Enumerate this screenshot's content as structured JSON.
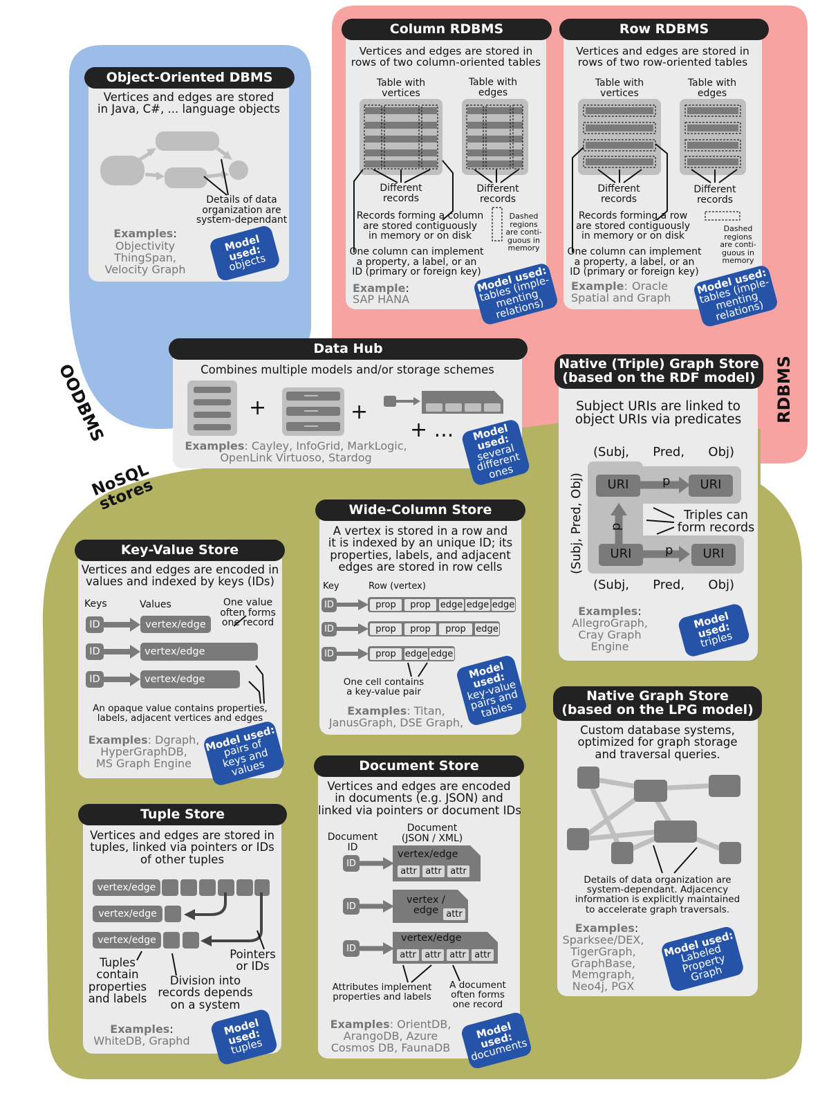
{
  "regions": {
    "oodbms": "OODBMS",
    "rdbms": "RDBMS",
    "nosql": "NoSQL\nstores"
  },
  "oodbms_panel": {
    "title": "Object-Oriented DBMS",
    "desc": "Vertices and edges are stored\nin Java, C#, ... language objects",
    "note": "Details of data\norganization are\nsystem-dependant",
    "examples_label": "Examples",
    "examples": "Objectivity\nThingSpan,\nVelocity Graph",
    "model_used": "Model\nused:",
    "model": "objects"
  },
  "column_rdbms": {
    "title": "Column RDBMS",
    "desc": "Vertices and edges are stored in\nrows of two column-oriented tables",
    "table_vertices": "Table with\nvertices",
    "table_edges": "Table with\nedges",
    "records_a": "Different\nrecords",
    "records_b": "Different\nrecords",
    "records_note": "Records forming a column\nare stored contiguously\nin memory or on disk",
    "dashed_note": "Dashed\nregions\nare conti-\nguous in\nmemory",
    "column_note": "One column can implement\na property, a label, or an\nID (primary or foreign key)",
    "example_label": "Example",
    "example": "SAP HANA",
    "model_used": "Model used:",
    "model": "tables (imple-\nmenting\nrelations)"
  },
  "row_rdbms": {
    "title": "Row RDBMS",
    "desc": "Vertices and edges are stored in\nrows of two row-oriented tables",
    "table_vertices": "Table with\nvertices",
    "table_edges": "Table with\nedges",
    "records_a": "Different\nrecords",
    "records_b": "Different\nrecords",
    "records_note": "Records forming a row\nare stored contiguously\nin memory or on disk",
    "dashed_note": "Dashed\nregions\nare conti-\nguous in\nmemory",
    "column_note": "One column can implement\na property, a label, or an\nID (primary or foreign key)",
    "example_label": "Example",
    "example": "Oracle\nSpatial and Graph",
    "model_used": "Model used:",
    "model": "tables (imple-\nmenting\nrelations)"
  },
  "data_hub": {
    "title": "Data Hub",
    "desc": "Combines multiple models and/or storage schemes",
    "plus1": "+",
    "plus2": "+",
    "plus3": "+ ...",
    "examples_label": "Examples",
    "examples": ": Cayley, InfoGrid, MarkLogic,\nOpenLink Virtuoso, Stardog",
    "model_used": "Model\nused:",
    "model": "several\ndifferent\nones"
  },
  "triple_store": {
    "title": "Native (Triple) Graph Store\n(based on the RDF model)",
    "desc": "Subject URIs are linked to\nobject URIs via predicates",
    "header_top": "(Subj,      Pred,      Obj)",
    "header_bottom": "(Subj,      Pred,      Obj)",
    "side_label": "(Subj, Pred, Obj)",
    "uri": "URI",
    "p": "p",
    "note": "Triples can\nform records",
    "examples_label": "Examples",
    "examples": "AllegroGraph,\nCray Graph\nEngine",
    "model_used": "Model\nused:",
    "model": "triples"
  },
  "kv_store": {
    "title": "Key-Value Store",
    "desc": "Vertices and edges are encoded in\nvalues and indexed by keys (IDs)",
    "keys": "Keys",
    "values": "Values",
    "one_value": "One value\noften forms\none record",
    "id": "ID",
    "value": "vertex/edge",
    "note": "An opaque value contains properties,\nlabels, adjacent vertices and edges",
    "examples_label": "Examples",
    "examples": ": Dgraph,\nHyperGraphDB,\nMS Graph Engine",
    "model_used": "Model used:",
    "model": "pairs of\nkeys and\nvalues"
  },
  "wide_column": {
    "title": "Wide-Column Store",
    "desc": "A vertex is stored in a row and\nit is indexed by an unique ID; its\nproperties, labels, and adjacent\nedges are stored in row cells",
    "key": "Key",
    "row": "Row (vertex)",
    "id": "ID",
    "prop": "prop",
    "edge": "edge",
    "note": "One cell contains\na key-value pair",
    "examples_label": "Examples",
    "examples": ": Titan,\nJanusGraph, DSE Graph,",
    "model_used": "Model\nused:",
    "model": "key-value\npairs and\ntables"
  },
  "lpg_store": {
    "title": "Native Graph Store\n(based on the LPG model)",
    "desc": "Custom database systems,\noptimized for graph storage\nand traversal queries.",
    "note": "Details of data organization are\nsystem-dependant. Adjacency\ninformation is explicitly maintained\nto accelerate graph traversals.",
    "examples_label": "Examples",
    "examples": "Sparksee/DEX,\nTigerGraph,\nGraphBase,\nMemgraph,\nNeo4j, PGX",
    "model_used": "Model used:",
    "model": "Labeled\nProperty\nGraph"
  },
  "tuple_store": {
    "title": "Tuple Store",
    "desc": "Vertices and edges are stored in\ntuples, linked via pointers or IDs\nof other tuples",
    "value": "vertex/edge",
    "tuples_note": "Tuples\ncontain\nproperties\nand labels",
    "division_note": "Division into\nrecords depends\non a system",
    "pointers_note": "Pointers\nor IDs",
    "examples_label": "Examples",
    "examples": "WhiteDB, Graphd",
    "model_used": "Model\nused:",
    "model": "tuples"
  },
  "document_store": {
    "title": "Document Store",
    "desc": "Vertices and edges are encoded\nin documents (e.g. JSON) and\nlinked via pointers or document IDs",
    "doc_id": "Document\nID",
    "doc_label": "Document\n(JSON / XML)",
    "id": "ID",
    "value": "vertex/edge",
    "value_split": "vertex /\nedge",
    "attr": "attr",
    "attr_note": "Attributes implement\nproperties and labels",
    "doc_note": "A document\noften forms\none record",
    "examples_label": "Examples",
    "examples": ": OrientDB,\nArangoDB, Azure\nCosmos DB, FaunaDB",
    "model_used": "Model\nused:",
    "model": "documents"
  },
  "colors": {
    "oodbms_region": "#9bbde8",
    "rdbms_region": "#f7a3a1",
    "nosql_region": "#b3b363",
    "panel": "#ebebeb",
    "title_bar": "#222222",
    "badge": "#2453a8",
    "chip": "#7a7a7a",
    "light_shape": "#bfbfbf"
  }
}
